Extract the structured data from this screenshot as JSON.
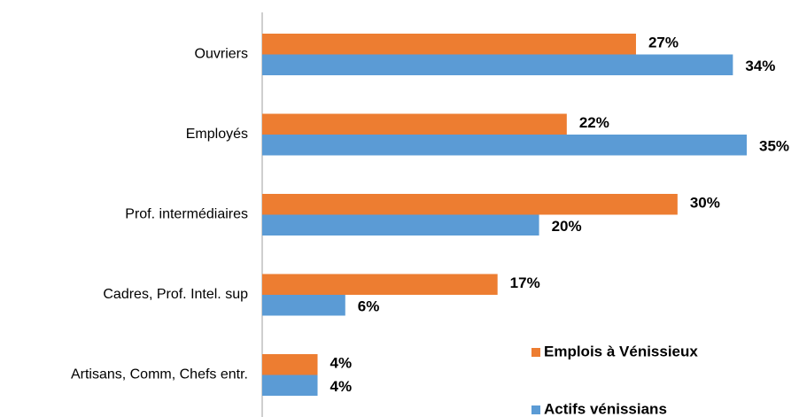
{
  "chart_data": {
    "type": "bar",
    "orientation": "horizontal",
    "categories": [
      "Ouvriers",
      "Employés",
      "Prof. intermédiaires",
      "Cadres, Prof. Intel. sup",
      "Artisans, Comm, Chefs entr."
    ],
    "series": [
      {
        "name": "Emplois à Vénissieux",
        "color": "#ED7D31",
        "values": [
          27,
          22,
          30,
          17,
          4
        ],
        "value_labels": [
          "27%",
          "22%",
          "30%",
          "17%",
          "4%"
        ]
      },
      {
        "name": "Actifs vénissians",
        "color": "#5B9BD5",
        "values": [
          34,
          35,
          20,
          6,
          4
        ],
        "value_labels": [
          "34%",
          "35%",
          "20%",
          "6%",
          "4%"
        ]
      }
    ],
    "legend": "lower right"
  }
}
